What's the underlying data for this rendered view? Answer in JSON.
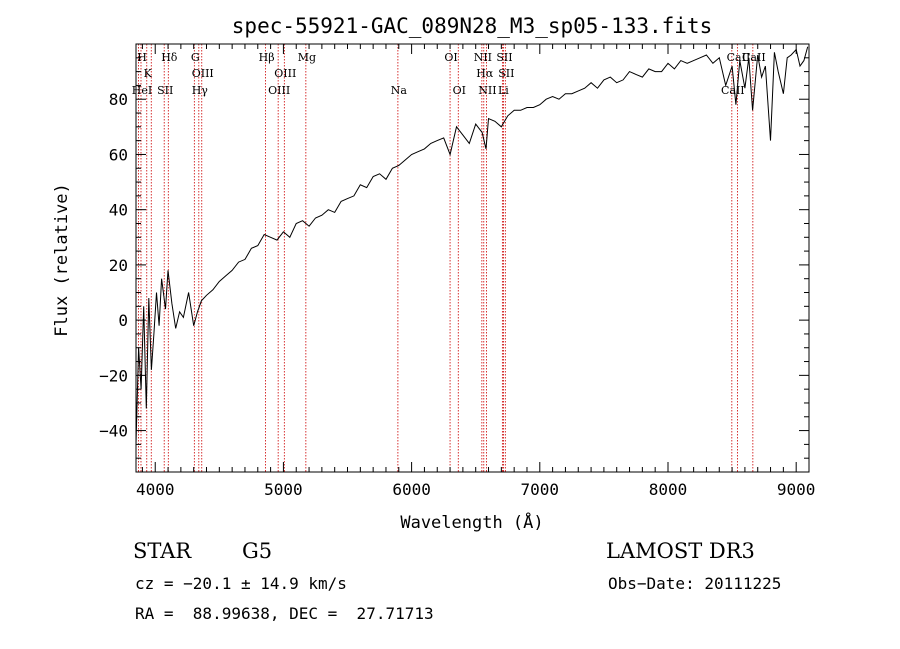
{
  "chart_data": {
    "type": "line",
    "title": "spec-55921-GAC_089N28_M3_sp05-133.fits",
    "xlabel": "Wavelength (Å)",
    "ylabel": "Flux (relative)",
    "xlim": [
      3850,
      9100
    ],
    "ylim": [
      -55,
      100
    ],
    "xticks": [
      4000,
      5000,
      6000,
      7000,
      8000,
      9000
    ],
    "yticks": [
      -40,
      -20,
      0,
      20,
      40,
      60,
      80
    ],
    "series": [
      {
        "name": "spectrum",
        "x": [
          3850,
          3870,
          3890,
          3910,
          3930,
          3950,
          3970,
          3990,
          4010,
          4030,
          4050,
          4080,
          4100,
          4130,
          4160,
          4190,
          4220,
          4260,
          4300,
          4330,
          4360,
          4400,
          4450,
          4500,
          4550,
          4600,
          4650,
          4700,
          4750,
          4800,
          4850,
          4900,
          4950,
          5000,
          5050,
          5100,
          5150,
          5200,
          5250,
          5300,
          5350,
          5400,
          5450,
          5500,
          5550,
          5600,
          5650,
          5700,
          5750,
          5800,
          5850,
          5900,
          5950,
          6000,
          6050,
          6100,
          6150,
          6200,
          6250,
          6300,
          6350,
          6400,
          6450,
          6500,
          6550,
          6580,
          6600,
          6650,
          6700,
          6750,
          6800,
          6850,
          6900,
          6950,
          7000,
          7050,
          7100,
          7150,
          7200,
          7250,
          7300,
          7350,
          7400,
          7450,
          7500,
          7550,
          7600,
          7650,
          7700,
          7750,
          7800,
          7850,
          7900,
          7950,
          8000,
          8050,
          8100,
          8150,
          8200,
          8250,
          8300,
          8350,
          8400,
          8450,
          8500,
          8530,
          8560,
          8600,
          8630,
          8660,
          8700,
          8730,
          8760,
          8800,
          8830,
          8860,
          8900,
          8930,
          8960,
          9000,
          9030,
          9060,
          9090
        ],
        "y": [
          -45,
          -10,
          -25,
          5,
          -32,
          8,
          -18,
          -5,
          10,
          -2,
          15,
          4,
          18,
          6,
          -3,
          3,
          1,
          10,
          -2,
          3,
          7,
          9,
          11,
          14,
          16,
          18,
          21,
          22,
          26,
          27,
          31,
          30,
          29,
          32,
          30,
          35,
          36,
          34,
          37,
          38,
          40,
          39,
          43,
          44,
          45,
          49,
          48,
          52,
          53,
          51,
          55,
          56,
          58,
          60,
          61,
          62,
          64,
          65,
          66,
          60,
          70,
          67,
          64,
          71,
          68,
          62,
          73,
          72,
          70,
          74,
          76,
          76,
          77,
          77,
          78,
          80,
          81,
          80,
          82,
          82,
          83,
          84,
          86,
          84,
          87,
          88,
          86,
          87,
          90,
          89,
          88,
          91,
          90,
          90,
          93,
          91,
          94,
          93,
          94,
          95,
          96,
          93,
          95,
          85,
          92,
          78,
          94,
          84,
          95,
          76,
          96,
          88,
          92,
          65,
          97,
          90,
          82,
          95,
          96,
          98,
          92,
          94,
          99
        ]
      }
    ],
    "lines_top": [
      {
        "label": "H",
        "wl": 3889
      },
      {
        "label": "K",
        "wl": 3934
      },
      {
        "label": "Hδ",
        "wl": 4102
      },
      {
        "label": "G",
        "wl": 4305
      },
      {
        "label": "OIII",
        "wl": 4363
      },
      {
        "label": "Hβ",
        "wl": 4861
      },
      {
        "label": "OIII",
        "wl": 5007
      },
      {
        "label": "Mg",
        "wl": 5175
      },
      {
        "label": "OI",
        "wl": 6300
      },
      {
        "label": "NII",
        "wl": 6548
      },
      {
        "label": "SII",
        "wl": 6717
      },
      {
        "label": "Hα",
        "wl": 6563
      },
      {
        "label": "SII",
        "wl": 6731
      },
      {
        "label": "CaII",
        "wl": 8542
      },
      {
        "label": "CaII",
        "wl": 8662
      }
    ],
    "lines_bottom": [
      {
        "label": "HeI",
        "wl": 3889
      },
      {
        "label": "SII",
        "wl": 4070
      },
      {
        "label": "Hγ",
        "wl": 4340
      },
      {
        "label": "OIII",
        "wl": 4959
      },
      {
        "label": "Na",
        "wl": 5893
      },
      {
        "label": "OI",
        "wl": 6364
      },
      {
        "label": "NII",
        "wl": 6584
      },
      {
        "label": "Li",
        "wl": 6708
      },
      {
        "label": "CaII",
        "wl": 8498
      }
    ],
    "line_wavelengths": [
      3869,
      3889,
      3934,
      3969,
      4070,
      4102,
      4305,
      4340,
      4363,
      4861,
      4959,
      5007,
      5175,
      5893,
      6300,
      6364,
      6548,
      6563,
      6584,
      6708,
      6717,
      6731,
      8498,
      8542,
      8662
    ],
    "colors": {
      "spectrum": "#000000",
      "lines": "#cc0000",
      "axes": "#000000"
    }
  },
  "info": {
    "class": "STAR",
    "subclass": "G5",
    "survey": "LAMOST DR3",
    "cz": "cz = −20.1 ± 14.9 km/s",
    "obs_date": "Obs−Date: 20111225",
    "radec": "RA =  88.99638, DEC =  27.71713"
  }
}
